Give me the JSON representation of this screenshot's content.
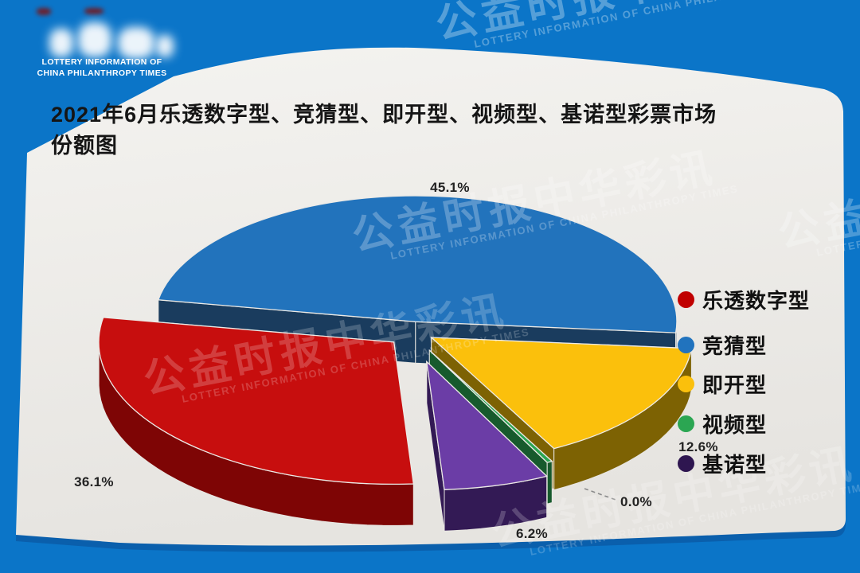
{
  "logo": {
    "line1": "LOTTERY INFORMATION OF",
    "line2": "CHINA PHILANTHROPY TIMES"
  },
  "watermark": {
    "cn": "公益时报中华彩讯",
    "en": "LOTTERY INFORMATION OF CHINA PHILANTHROPY TIMES"
  },
  "title": "2021年6月乐透数字型、竞猜型、即开型、视频型、基诺型彩票市场份额图",
  "chart_data": {
    "type": "pie",
    "style": "3d-exploded",
    "title": "2021年6月乐透数字型、竞猜型、即开型、视频型、基诺型彩票市场份额图",
    "unit": "%",
    "legend_position": "right",
    "categories": [
      "乐透数字型",
      "竞猜型",
      "即开型",
      "视频型",
      "基诺型"
    ],
    "values": [
      36.1,
      45.1,
      12.6,
      0.0,
      6.2
    ],
    "slices": [
      {
        "label": "乐透数字型",
        "value": 36.1,
        "display": "36.1%",
        "color": "#c70e0e",
        "side": "#7e0505",
        "legend_color": "#c00000"
      },
      {
        "label": "竞猜型",
        "value": 45.1,
        "display": "45.1%",
        "color": "#2273bc",
        "side": "#1a3c5e",
        "legend_color": "#2173be"
      },
      {
        "label": "即开型",
        "value": 12.6,
        "display": "12.6%",
        "color": "#fbc00c",
        "side": "#7d6203",
        "legend_color": "#fbc00c"
      },
      {
        "label": "视频型",
        "value": 0.0,
        "display": "0.0%",
        "color": "#2ba652",
        "side": "#175a2d",
        "legend_color": "#2ba652"
      },
      {
        "label": "基诺型",
        "value": 6.2,
        "display": "6.2%",
        "color": "#6b3da6",
        "side": "#331a55",
        "legend_color": "#2e1650"
      }
    ],
    "colors": {
      "background": "#0b75c8",
      "panel_top": "#f2f1ee",
      "panel_bottom": "#e5e3df",
      "panel_shadow": "#0a5fac"
    }
  }
}
